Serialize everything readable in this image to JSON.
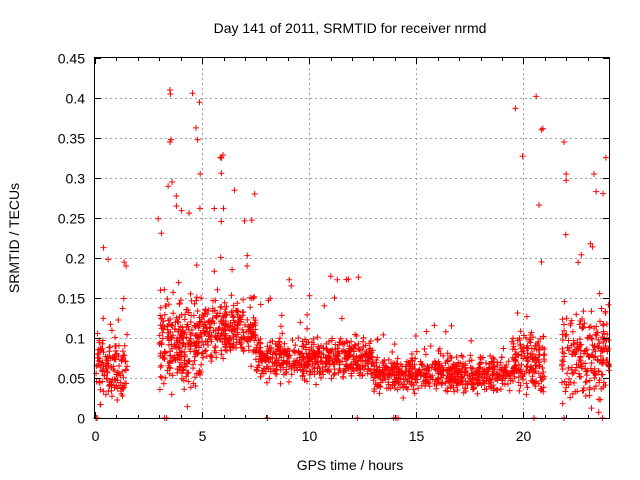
{
  "chart_data": {
    "type": "scatter",
    "title": "Day 141 of 2011, SRMTID for receiver nrmd",
    "xlabel": "GPS time / hours",
    "ylabel": "SRMTID / TECUs",
    "xlim": [
      0,
      24
    ],
    "ylim": [
      0,
      0.45
    ],
    "x_ticks": [
      0,
      5,
      10,
      15,
      20
    ],
    "x_tick_labels": [
      "0",
      "5",
      "10",
      "15",
      "20"
    ],
    "y_ticks": [
      0,
      0.05,
      0.1,
      0.15,
      0.2,
      0.25,
      0.3,
      0.35,
      0.4,
      0.45
    ],
    "y_tick_labels": [
      "0",
      "0.05",
      "0.1",
      "0.15",
      "0.2",
      "0.25",
      "0.3",
      "0.35",
      "0.4",
      "0.45"
    ],
    "grid": true,
    "marker": "+",
    "color": "#ff0000",
    "series": [
      {
        "name": "SRMTID",
        "segments": [
          {
            "x_range": [
              0.05,
              1.5
            ],
            "level": 0.06,
            "spread": 0.06,
            "peak": 0.21,
            "count": 140
          },
          {
            "x_range": [
              3.0,
              5.0
            ],
            "level": 0.09,
            "spread": 0.08,
            "peak": 0.41,
            "count": 260
          },
          {
            "x_range": [
              5.0,
              7.5
            ],
            "level": 0.11,
            "spread": 0.05,
            "peak": 0.33,
            "count": 260
          },
          {
            "x_range": [
              7.5,
              13.0
            ],
            "level": 0.075,
            "spread": 0.035,
            "peak": 0.18,
            "count": 520
          },
          {
            "x_range": [
              13.0,
              19.5
            ],
            "level": 0.055,
            "spread": 0.03,
            "peak": 0.12,
            "count": 560
          },
          {
            "x_range": [
              19.5,
              21.0
            ],
            "level": 0.07,
            "spread": 0.05,
            "peak": 0.4,
            "count": 160
          },
          {
            "x_range": [
              21.8,
              24.0
            ],
            "level": 0.08,
            "spread": 0.08,
            "peak": 0.35,
            "count": 220
          }
        ],
        "points": [
          [
            3.5,
            0.41
          ],
          [
            3.52,
            0.405
          ],
          [
            3.55,
            0.348
          ],
          [
            3.5,
            0.345
          ],
          [
            3.6,
            0.295
          ],
          [
            5.85,
            0.326
          ],
          [
            5.9,
            0.325
          ],
          [
            5.9,
            0.306
          ],
          [
            6.0,
            0.262
          ],
          [
            20.6,
            0.402
          ],
          [
            21.9,
            0.345
          ],
          [
            22.0,
            0.305
          ],
          [
            22.0,
            0.297
          ],
          [
            23.3,
            0.305
          ],
          [
            23.4,
            0.283
          ],
          [
            12.3,
            0.176
          ],
          [
            8.1,
            0.147
          ],
          [
            3.8,
            0.265
          ],
          [
            4.9,
            0.262
          ],
          [
            2.95,
            0.249
          ],
          [
            3.1,
            0.231
          ],
          [
            0.4,
            0.213
          ],
          [
            1.45,
            0.19
          ],
          [
            7.1,
            0.19
          ],
          [
            20.85,
            0.195
          ]
        ],
        "zero_points": [
          0.05,
          0.1,
          3.25,
          3.35,
          8.05,
          12.25,
          13.95,
          14.05,
          14.15,
          20.5,
          21.9,
          23.7
        ]
      }
    ]
  }
}
